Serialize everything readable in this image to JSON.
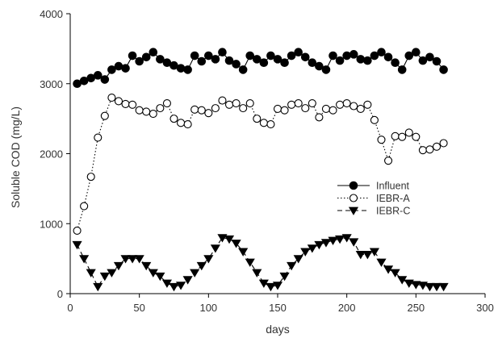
{
  "chart_data": {
    "type": "line",
    "xlabel": "days",
    "ylabel": "Soluble COD (mg/L)",
    "xlim": [
      0,
      300
    ],
    "ylim": [
      0,
      4000
    ],
    "xticks": [
      "0",
      "50",
      "100",
      "150",
      "200",
      "250",
      "300"
    ],
    "yticks": [
      "0",
      "1000",
      "2000",
      "3000",
      "4000"
    ],
    "grid": false,
    "legend_position": "center-right",
    "series": [
      {
        "name": "Influent",
        "line_style": "solid",
        "marker": "filled-circle",
        "color": "#000000",
        "x": [
          5,
          10,
          15,
          20,
          25,
          30,
          35,
          40,
          45,
          50,
          55,
          60,
          65,
          70,
          75,
          80,
          85,
          90,
          95,
          100,
          105,
          110,
          115,
          120,
          125,
          130,
          135,
          140,
          145,
          150,
          155,
          160,
          165,
          170,
          175,
          180,
          185,
          190,
          195,
          200,
          205,
          210,
          215,
          220,
          225,
          230,
          235,
          240,
          245,
          250,
          255,
          260,
          265,
          270
        ],
        "values": [
          3000,
          3040,
          3080,
          3120,
          3060,
          3200,
          3250,
          3220,
          3400,
          3320,
          3380,
          3450,
          3350,
          3300,
          3260,
          3220,
          3200,
          3400,
          3320,
          3400,
          3350,
          3450,
          3330,
          3280,
          3200,
          3400,
          3350,
          3300,
          3400,
          3350,
          3300,
          3400,
          3450,
          3380,
          3300,
          3250,
          3200,
          3400,
          3330,
          3400,
          3420,
          3350,
          3330,
          3400,
          3450,
          3380,
          3300,
          3200,
          3400,
          3450,
          3330,
          3380,
          3320,
          3200
        ]
      },
      {
        "name": "IEBR-A",
        "line_style": "dotted",
        "marker": "open-circle",
        "color": "#000000",
        "x": [
          5,
          10,
          15,
          20,
          25,
          30,
          35,
          40,
          45,
          50,
          55,
          60,
          65,
          70,
          75,
          80,
          85,
          90,
          95,
          100,
          105,
          110,
          115,
          120,
          125,
          130,
          135,
          140,
          145,
          150,
          155,
          160,
          165,
          170,
          175,
          180,
          185,
          190,
          195,
          200,
          205,
          210,
          215,
          220,
          225,
          230,
          235,
          240,
          245,
          250,
          255,
          260,
          265,
          270
        ],
        "values": [
          900,
          1250,
          1670,
          2230,
          2540,
          2800,
          2750,
          2710,
          2700,
          2620,
          2600,
          2570,
          2650,
          2720,
          2500,
          2440,
          2420,
          2630,
          2620,
          2580,
          2650,
          2760,
          2700,
          2720,
          2650,
          2720,
          2500,
          2440,
          2420,
          2640,
          2620,
          2700,
          2720,
          2650,
          2720,
          2520,
          2640,
          2620,
          2700,
          2720,
          2680,
          2640,
          2700,
          2480,
          2200,
          1900,
          2250,
          2240,
          2300,
          2240,
          2050,
          2060,
          2100,
          2150
        ]
      },
      {
        "name": "IEBR-C",
        "line_style": "dashed",
        "marker": "filled-triangle-down",
        "color": "#000000",
        "x": [
          5,
          10,
          15,
          20,
          25,
          30,
          35,
          40,
          45,
          50,
          55,
          60,
          65,
          70,
          75,
          80,
          85,
          90,
          95,
          100,
          105,
          110,
          115,
          120,
          125,
          130,
          135,
          140,
          145,
          150,
          155,
          160,
          165,
          170,
          175,
          180,
          185,
          190,
          195,
          200,
          205,
          210,
          215,
          220,
          225,
          230,
          235,
          240,
          245,
          250,
          255,
          260,
          265,
          270
        ],
        "values": [
          700,
          500,
          300,
          100,
          250,
          300,
          400,
          500,
          500,
          500,
          400,
          300,
          250,
          150,
          100,
          120,
          200,
          300,
          400,
          500,
          650,
          800,
          780,
          720,
          600,
          450,
          300,
          150,
          100,
          120,
          250,
          400,
          500,
          600,
          650,
          700,
          730,
          760,
          780,
          800,
          740,
          560,
          560,
          600,
          450,
          350,
          300,
          200,
          150,
          130,
          120,
          100,
          100,
          100
        ]
      }
    ]
  }
}
